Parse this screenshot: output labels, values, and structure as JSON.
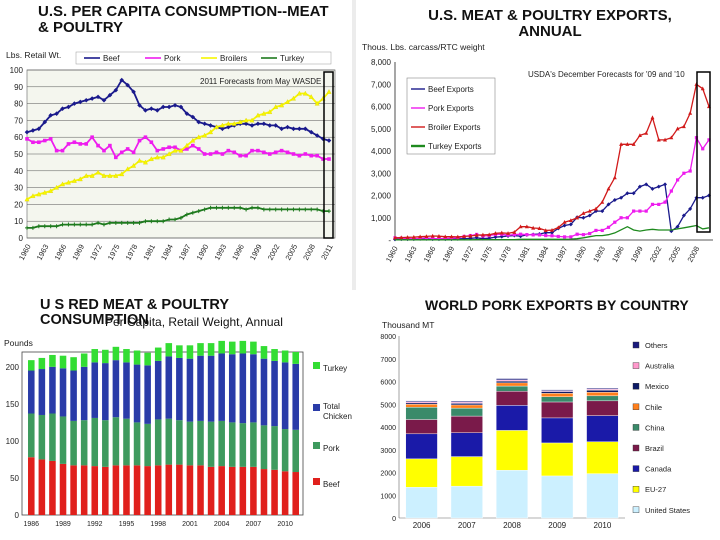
{
  "charts": {
    "c1": {
      "title": "U.S. PER CAPITA CONSUMPTION--MEAT & POULTRY",
      "ylabel": "Lbs. Retail Wt.",
      "annotation": "2011 Forecasts from May WASDE",
      "series_colors": {
        "Beef": "#1a1a8c",
        "Pork": "#ee1cee",
        "Broilers": "#f7f700",
        "Turkey": "#1e7a1e"
      }
    },
    "c2": {
      "title": "U.S. MEAT & POULTRY EXPORTS, ANNUAL",
      "ylabel": "Thous. Lbs. carcass/RTC weight",
      "annotation": "USDA's December Forecasts for '09 and '10",
      "series_colors": {
        "Beef Exports": "#1a1a8c",
        "Pork Exports": "#ee1cee",
        "Broiler Exports": "#d11a1a",
        "Turkey Exports": "#1e8a1e"
      }
    },
    "c3": {
      "title": "U S RED MEAT & POULTRY CONSUMPTION",
      "subtitle": "Per Capita, Retail Weight, Annual",
      "ylabel": "Pounds",
      "series_colors": {
        "Turkey": "#33dd33",
        "Total Chicken": "#2a3ca8",
        "Pork": "#3e9a5e",
        "Beef": "#e0201c"
      }
    },
    "c4": {
      "title": "WORLD PORK EXPORTS BY COUNTRY",
      "ylabel": "Thousand MT",
      "series_colors": {
        "Others": "#1a1a7c",
        "Australia": "#ff99cc",
        "Mexico": "#0d1a66",
        "Chile": "#ff7f1c",
        "China": "#3a8a6a",
        "Brazil": "#7a1a4a",
        "Canada": "#1a1aa8",
        "EU-27": "#ffff00",
        "United States": "#ccf0ff"
      }
    }
  },
  "chart_data": [
    {
      "type": "line",
      "title": "U.S. PER CAPITA CONSUMPTION--MEAT & POULTRY",
      "ylabel": "Lbs. Retail Wt.",
      "ylim": [
        0,
        100
      ],
      "yticks": [
        0,
        10,
        20,
        30,
        40,
        50,
        60,
        70,
        80,
        90,
        100
      ],
      "x": [
        1960,
        1961,
        1962,
        1963,
        1964,
        1965,
        1966,
        1967,
        1968,
        1969,
        1970,
        1971,
        1972,
        1973,
        1974,
        1975,
        1976,
        1977,
        1978,
        1979,
        1980,
        1981,
        1982,
        1983,
        1984,
        1985,
        1986,
        1987,
        1988,
        1989,
        1990,
        1991,
        1992,
        1993,
        1994,
        1995,
        1996,
        1997,
        1998,
        1999,
        2000,
        2001,
        2002,
        2003,
        2004,
        2005,
        2006,
        2007,
        2008,
        2009,
        2010,
        2011
      ],
      "xtick_labels": [
        "1960",
        "1963",
        "1966",
        "1969",
        "1972",
        "1975",
        "1978",
        "1981",
        "1984",
        "1987",
        "1990",
        "1993",
        "1996",
        "1999",
        "2002",
        "2005",
        "2008",
        "2011"
      ],
      "series": [
        {
          "name": "Beef",
          "values": [
            63,
            64,
            65,
            69,
            73,
            74,
            77,
            78,
            80,
            81,
            82,
            83,
            84,
            82,
            85,
            88,
            94,
            91,
            87,
            79,
            76,
            77,
            76,
            78,
            78,
            79,
            78,
            74,
            72,
            69,
            68,
            67,
            66,
            65,
            66,
            67,
            68,
            68,
            67,
            68,
            68,
            67,
            67,
            65,
            66,
            65,
            65,
            65,
            63,
            61,
            59,
            58
          ]
        },
        {
          "name": "Pork",
          "values": [
            59,
            57,
            57,
            58,
            59,
            52,
            52,
            56,
            57,
            56,
            56,
            60,
            55,
            52,
            55,
            48,
            51,
            53,
            51,
            58,
            60,
            57,
            52,
            53,
            54,
            54,
            52,
            53,
            55,
            53,
            50,
            50,
            51,
            50,
            52,
            51,
            49,
            49,
            52,
            52,
            51,
            50,
            51,
            52,
            51,
            50,
            49,
            50,
            49,
            49,
            47,
            47
          ]
        },
        {
          "name": "Broilers",
          "values": [
            23,
            25,
            26,
            27,
            28,
            30,
            32,
            33,
            34,
            35,
            37,
            37,
            39,
            37,
            37,
            37,
            38,
            41,
            43,
            46,
            45,
            47,
            48,
            48,
            50,
            52,
            52,
            55,
            58,
            60,
            61,
            63,
            66,
            67,
            68,
            68,
            69,
            70,
            70,
            73,
            74,
            75,
            78,
            79,
            81,
            83,
            86,
            86,
            84,
            80,
            83,
            87
          ]
        },
        {
          "name": "Turkey",
          "values": [
            6,
            6,
            7,
            7,
            7,
            7,
            8,
            8,
            8,
            8,
            8,
            8,
            9,
            8,
            9,
            9,
            9,
            9,
            9,
            9,
            10,
            10,
            10,
            10,
            11,
            11,
            12,
            14,
            15,
            16,
            17,
            18,
            18,
            18,
            18,
            18,
            18,
            17,
            18,
            18,
            17,
            17,
            17,
            17,
            17,
            17,
            17,
            17,
            17,
            17,
            16,
            16
          ]
        }
      ],
      "annotation": "2011 Forecasts from May WASDE"
    },
    {
      "type": "line",
      "title": "U.S. MEAT & POULTRY EXPORTS, ANNUAL",
      "ylabel": "Thous. Lbs. carcass/RTC weight",
      "ylim": [
        0,
        8000
      ],
      "yticks": [
        0,
        1000,
        2000,
        3000,
        4000,
        5000,
        6000,
        7000,
        8000
      ],
      "ytick_labels": [
        "-",
        "1,000",
        "2,000",
        "3,000",
        "4,000",
        "5,000",
        "6,000",
        "7,000",
        "8,000"
      ],
      "x": [
        1960,
        1961,
        1962,
        1963,
        1964,
        1965,
        1966,
        1967,
        1968,
        1969,
        1970,
        1971,
        1972,
        1973,
        1974,
        1975,
        1976,
        1977,
        1978,
        1979,
        1980,
        1981,
        1982,
        1983,
        1984,
        1985,
        1986,
        1987,
        1988,
        1989,
        1990,
        1991,
        1992,
        1993,
        1994,
        1995,
        1996,
        1997,
        1998,
        1999,
        2000,
        2001,
        2002,
        2003,
        2004,
        2005,
        2006,
        2007,
        2008,
        2009,
        2010
      ],
      "xtick_labels": [
        "1960",
        "1963",
        "1966",
        "1969",
        "1972",
        "1975",
        "1978",
        "1981",
        "1984",
        "1987",
        "1990",
        "1993",
        "1996",
        "1999",
        "2002",
        "2005",
        "2008"
      ],
      "series": [
        {
          "name": "Beef Exports",
          "values": [
            30,
            40,
            40,
            40,
            50,
            50,
            40,
            40,
            40,
            40,
            50,
            60,
            70,
            100,
            60,
            80,
            130,
            150,
            180,
            200,
            170,
            230,
            250,
            270,
            330,
            330,
            520,
            650,
            700,
            1020,
            1000,
            1100,
            1300,
            1300,
            1600,
            1800,
            1900,
            2100,
            2100,
            2400,
            2500,
            2300,
            2400,
            2500,
            400,
            600,
            1100,
            1400,
            1900,
            1900,
            2000
          ]
        },
        {
          "name": "Pork Exports",
          "values": [
            100,
            80,
            60,
            60,
            70,
            100,
            60,
            60,
            70,
            80,
            100,
            160,
            200,
            250,
            180,
            200,
            250,
            260,
            220,
            240,
            260,
            240,
            230,
            230,
            200,
            190,
            160,
            140,
            140,
            260,
            240,
            290,
            430,
            430,
            570,
            800,
            1000,
            1000,
            1300,
            1300,
            1300,
            1600,
            1600,
            1700,
            2200,
            2700,
            3000,
            3100,
            4600,
            4100,
            4500
          ]
        },
        {
          "name": "Broiler Exports",
          "values": [
            100,
            110,
            120,
            130,
            150,
            160,
            180,
            170,
            150,
            150,
            140,
            160,
            180,
            220,
            230,
            240,
            300,
            320,
            300,
            350,
            600,
            600,
            540,
            520,
            430,
            440,
            560,
            800,
            880,
            1000,
            1200,
            1300,
            1400,
            1700,
            2300,
            2800,
            4300,
            4300,
            4300,
            4700,
            4800,
            5500,
            4500,
            4500,
            4600,
            5000,
            5100,
            5700,
            7000,
            6800,
            6000
          ]
        },
        {
          "name": "Turkey Exports",
          "values": [
            10,
            10,
            10,
            10,
            10,
            10,
            10,
            10,
            10,
            10,
            10,
            10,
            10,
            20,
            20,
            20,
            20,
            20,
            20,
            20,
            30,
            30,
            30,
            30,
            30,
            30,
            30,
            30,
            40,
            60,
            100,
            150,
            200,
            200,
            240,
            320,
            460,
            600,
            450,
            400,
            450,
            480,
            450,
            450,
            450,
            500,
            550,
            600,
            650,
            500,
            550
          ]
        }
      ],
      "annotation": "USDA's December Forecasts for '09 and '10"
    },
    {
      "type": "bar",
      "stacked": true,
      "title": "U S RED MEAT & POULTRY CONSUMPTION",
      "subtitle": "Per Capita, Retail Weight, Annual",
      "ylabel": "Pounds",
      "ylim": [
        0,
        220
      ],
      "yticks": [
        0,
        50,
        100,
        150,
        200
      ],
      "categories": [
        1986,
        1987,
        1988,
        1989,
        1990,
        1991,
        1992,
        1993,
        1994,
        1995,
        1996,
        1997,
        1998,
        1999,
        2000,
        2001,
        2002,
        2003,
        2004,
        2005,
        2006,
        2007,
        2008,
        2009,
        2010,
        2011
      ],
      "xtick_labels": [
        "1986",
        "1989",
        "1992",
        "1995",
        "1998",
        "2001",
        "2004",
        "2007",
        "2010"
      ],
      "series": [
        {
          "name": "Beef",
          "values": [
            78,
            75,
            73,
            69,
            67,
            67,
            66,
            65,
            67,
            67,
            67,
            66,
            67,
            68,
            68,
            67,
            67,
            65,
            66,
            65,
            65,
            65,
            62,
            61,
            59,
            58
          ]
        },
        {
          "name": "Pork",
          "values": [
            59,
            60,
            64,
            64,
            60,
            61,
            65,
            63,
            65,
            63,
            58,
            57,
            62,
            62,
            60,
            59,
            60,
            61,
            61,
            60,
            59,
            60,
            59,
            59,
            57,
            57
          ]
        },
        {
          "name": "Total Chicken",
          "values": [
            58,
            62,
            63,
            65,
            68,
            72,
            75,
            77,
            77,
            76,
            78,
            79,
            79,
            84,
            84,
            85,
            88,
            89,
            91,
            92,
            94,
            92,
            90,
            88,
            90,
            89
          ]
        },
        {
          "name": "Turkey",
          "values": [
            14,
            15,
            16,
            17,
            18,
            18,
            18,
            18,
            18,
            18,
            19,
            17,
            18,
            18,
            17,
            18,
            17,
            17,
            17,
            17,
            17,
            17,
            17,
            16,
            16,
            16
          ]
        }
      ]
    },
    {
      "type": "bar",
      "stacked": true,
      "title": "WORLD PORK EXPORTS BY COUNTRY",
      "ylabel": "Thousand MT",
      "ylim": [
        0,
        8000
      ],
      "yticks": [
        0,
        1000,
        2000,
        3000,
        4000,
        5000,
        6000,
        7000,
        8000
      ],
      "categories": [
        "2006",
        "2007",
        "2008",
        "2009",
        "2010"
      ],
      "series": [
        {
          "name": "United States",
          "values": [
            1350,
            1400,
            2100,
            1850,
            1950
          ]
        },
        {
          "name": "EU-27",
          "values": [
            1250,
            1300,
            1750,
            1450,
            1400
          ]
        },
        {
          "name": "Canada",
          "values": [
            1100,
            1050,
            1100,
            1100,
            1150
          ]
        },
        {
          "name": "Brazil",
          "values": [
            630,
            730,
            620,
            700,
            650
          ]
        },
        {
          "name": "China",
          "values": [
            540,
            350,
            230,
            230,
            220
          ]
        },
        {
          "name": "Chile",
          "values": [
            130,
            140,
            140,
            150,
            160
          ]
        },
        {
          "name": "Mexico",
          "values": [
            60,
            70,
            80,
            80,
            90
          ]
        },
        {
          "name": "Australia",
          "values": [
            50,
            50,
            50,
            40,
            40
          ]
        },
        {
          "name": "Others",
          "values": [
            40,
            40,
            60,
            40,
            40
          ]
        }
      ],
      "legend_order": [
        "Others",
        "Australia",
        "Mexico",
        "Chile",
        "China",
        "Brazil",
        "Canada",
        "EU-27",
        "United States"
      ]
    }
  ]
}
